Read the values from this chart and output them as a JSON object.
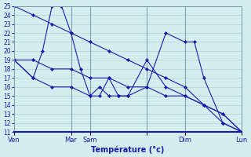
{
  "xlabel": "Température (°c)",
  "background_color": "#d4eef0",
  "grid_color": "#aed4d8",
  "line_color": "#1a1aaa",
  "ylim": [
    11,
    25
  ],
  "yticks": [
    11,
    12,
    13,
    14,
    15,
    16,
    17,
    18,
    19,
    20,
    21,
    22,
    23,
    24,
    25
  ],
  "xlim": [
    0,
    12
  ],
  "xtick_pos": [
    0,
    3,
    4,
    7,
    9,
    12
  ],
  "xtick_labels": [
    "Ven",
    "Mar",
    "Sam",
    "",
    "Dim",
    "Lun"
  ],
  "series": [
    {
      "x": [
        0,
        1,
        2,
        3,
        4,
        5,
        6,
        7,
        8,
        9,
        10,
        11,
        12
      ],
      "y": [
        25,
        24,
        23,
        22,
        21,
        20,
        19,
        18,
        17,
        16,
        14,
        13,
        11
      ]
    },
    {
      "x": [
        0,
        1,
        2,
        3,
        4,
        5,
        6,
        7,
        8,
        9,
        10,
        11,
        12
      ],
      "y": [
        19,
        19,
        18,
        18,
        17,
        17,
        16,
        16,
        15,
        15,
        14,
        13,
        11
      ]
    },
    {
      "x": [
        0,
        1,
        1.5,
        2,
        2.5,
        3,
        3.5,
        4,
        4.5,
        5,
        5.5,
        6,
        7,
        8,
        9,
        10,
        11,
        12
      ],
      "y": [
        19,
        17,
        20,
        25,
        25,
        22,
        18,
        15,
        15,
        17,
        15,
        15,
        19,
        16,
        15,
        14,
        12,
        11
      ]
    },
    {
      "x": [
        0,
        1,
        2,
        3,
        4,
        4.5,
        5,
        5.5,
        6,
        7,
        8,
        9,
        9.5,
        10,
        11,
        12
      ],
      "y": [
        19,
        17,
        16,
        16,
        15,
        16,
        15,
        15,
        15,
        16,
        22,
        21,
        21,
        17,
        12,
        11
      ]
    }
  ]
}
